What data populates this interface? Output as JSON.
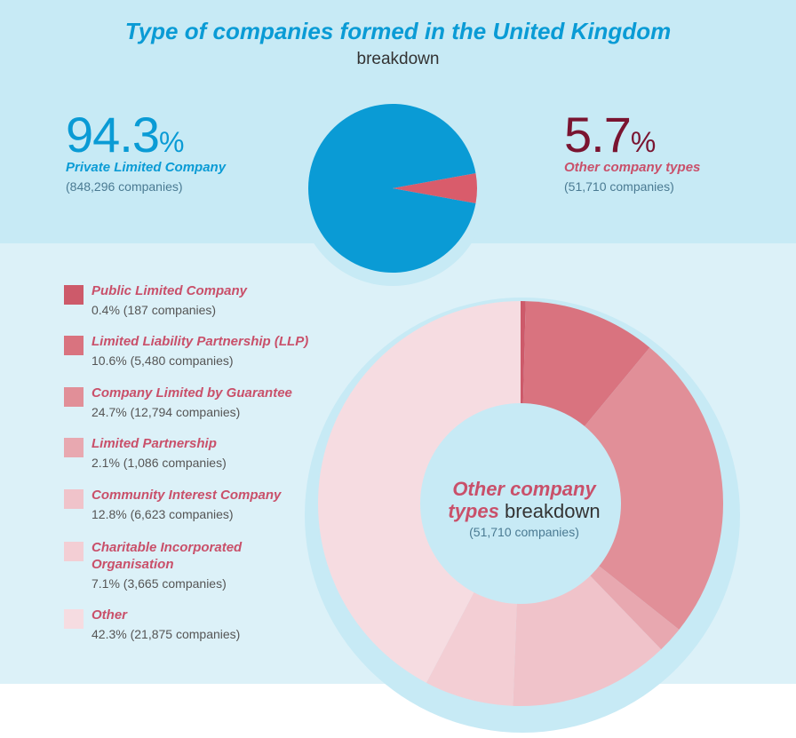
{
  "header": {
    "title": "Type of companies formed in the United Kingdom",
    "subtitle": "breakdown"
  },
  "stats": {
    "left": {
      "value": "94.3",
      "unit": "%",
      "label": "Private Limited Company",
      "count": "(848,296 companies)",
      "color": "#0a9bd5"
    },
    "right": {
      "value": "5.7",
      "unit": "%",
      "label": "Other company types",
      "count": "(51,710 companies)",
      "color": "#7a1430",
      "label_color": "#c9506a"
    }
  },
  "donut_center": {
    "line1": "Other company",
    "line2_em": "types",
    "line2_plain": "breakdown",
    "line3": "(51,710 companies)"
  },
  "legend": [
    {
      "name": "Public Limited Company",
      "value": "0.4% (187 companies)",
      "color": "#cd5a6a"
    },
    {
      "name": "Limited Liability Partnership (LLP)",
      "value": "10.6% (5,480 companies)",
      "color": "#d9737f"
    },
    {
      "name": "Company Limited by Guarantee",
      "value": "24.7% (12,794 companies)",
      "color": "#e18f98"
    },
    {
      "name": "Limited Partnership",
      "value": "2.1% (1,086 companies)",
      "color": "#e8a8b0"
    },
    {
      "name": "Community Interest Company",
      "value": "12.8% (6,623 companies)",
      "color": "#f0c3ca"
    },
    {
      "name": "Charitable Incorporated Organisation",
      "value": "7.1% (3,665 companies)",
      "color": "#f3ced4"
    },
    {
      "name": "Other",
      "value": "42.3% (21,875 companies)",
      "color": "#f6dce1"
    }
  ],
  "chart_data": [
    {
      "type": "pie",
      "categories": [
        "Private Limited Company",
        "Other company types"
      ],
      "values": [
        94.3,
        5.7
      ],
      "counts": [
        848296,
        51710
      ],
      "colors": [
        "#0a9bd5",
        "#d95c6b"
      ]
    },
    {
      "type": "pie",
      "categories": [
        "Public Limited Company",
        "Limited Liability Partnership (LLP)",
        "Company Limited by Guarantee",
        "Limited Partnership",
        "Community Interest Company",
        "Charitable Incorporated Organisation",
        "Other"
      ],
      "values": [
        0.4,
        10.6,
        24.7,
        2.1,
        12.8,
        7.1,
        42.3
      ],
      "counts": [
        187,
        5480,
        12794,
        1086,
        6623,
        3665,
        21875
      ],
      "colors": [
        "#cd5a6a",
        "#d9737f",
        "#e18f98",
        "#e8a8b0",
        "#f0c3ca",
        "#f3ced4",
        "#f6dce1"
      ]
    }
  ]
}
